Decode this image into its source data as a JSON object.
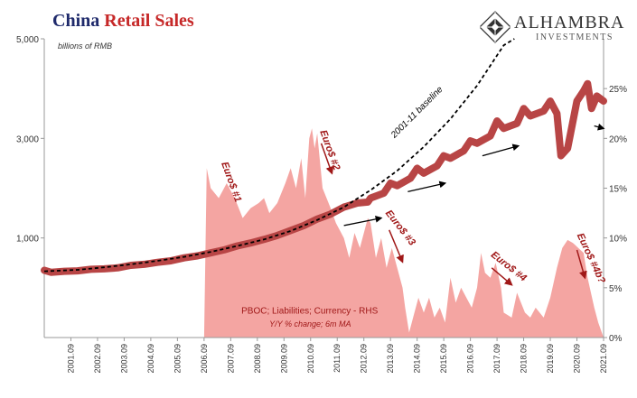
{
  "header": {
    "title_part1": "China",
    "title_part2": "Retail Sales",
    "logo_name": "ALHAMBRA",
    "logo_sub": "INVESTMENTS",
    "units": "billions of RMB"
  },
  "colors": {
    "title_blue": "#1f2a6b",
    "title_red": "#c62828",
    "retail_line": "#b84545",
    "pboc_area": "#f4a5a2",
    "annotation_red": "#a01818",
    "baseline": "#000000"
  },
  "chart_data": {
    "type": "line",
    "x_ticks": [
      "2001.09",
      "2002.09",
      "2003.09",
      "2004.09",
      "2005.09",
      "2006.09",
      "2007.09",
      "2008.09",
      "2009.09",
      "2010.09",
      "2011.09",
      "2012.09",
      "2013.09",
      "2014.09",
      "2015.09",
      "2016.09",
      "2017.09",
      "2018.09",
      "2019.09",
      "2020.09",
      "2021.09"
    ],
    "left_axis": {
      "ticks": [
        "1,000",
        "3,000",
        "5,000"
      ],
      "tick_values": [
        1000,
        3000,
        5000
      ],
      "range": [
        -1000,
        5000
      ],
      "scale": "linear"
    },
    "right_axis": {
      "ticks": [
        "0%",
        "5%",
        "10%",
        "15%",
        "20%",
        "25%"
      ],
      "tick_values": [
        0,
        5,
        10,
        15,
        20,
        25
      ],
      "range": [
        0,
        30
      ]
    },
    "x_range": [
      2000.75,
      2021.75
    ],
    "series": [
      {
        "name": "China Retail Sales",
        "axis": "left",
        "style": "thick-line",
        "points": [
          [
            2000.75,
            350
          ],
          [
            2001.0,
            310
          ],
          [
            2001.5,
            330
          ],
          [
            2002.0,
            340
          ],
          [
            2002.5,
            370
          ],
          [
            2003.0,
            380
          ],
          [
            2003.5,
            400
          ],
          [
            2004.0,
            450
          ],
          [
            2004.5,
            470
          ],
          [
            2005.0,
            510
          ],
          [
            2005.5,
            540
          ],
          [
            2006.0,
            600
          ],
          [
            2006.5,
            640
          ],
          [
            2007.0,
            700
          ],
          [
            2007.5,
            760
          ],
          [
            2008.0,
            840
          ],
          [
            2008.5,
            900
          ],
          [
            2009.0,
            970
          ],
          [
            2009.5,
            1050
          ],
          [
            2010.0,
            1150
          ],
          [
            2010.5,
            1250
          ],
          [
            2011.0,
            1380
          ],
          [
            2011.5,
            1480
          ],
          [
            2012.0,
            1620
          ],
          [
            2012.5,
            1700
          ],
          [
            2012.9,
            1720
          ],
          [
            2013.0,
            1800
          ],
          [
            2013.5,
            1900
          ],
          [
            2013.75,
            2100
          ],
          [
            2014.0,
            2050
          ],
          [
            2014.5,
            2200
          ],
          [
            2014.75,
            2400
          ],
          [
            2015.0,
            2300
          ],
          [
            2015.5,
            2450
          ],
          [
            2015.75,
            2650
          ],
          [
            2016.0,
            2600
          ],
          [
            2016.5,
            2750
          ],
          [
            2016.75,
            2950
          ],
          [
            2017.0,
            2900
          ],
          [
            2017.5,
            3050
          ],
          [
            2017.75,
            3350
          ],
          [
            2018.0,
            3200
          ],
          [
            2018.5,
            3300
          ],
          [
            2018.75,
            3600
          ],
          [
            2019.0,
            3450
          ],
          [
            2019.5,
            3550
          ],
          [
            2019.75,
            3750
          ],
          [
            2020.0,
            3500
          ],
          [
            2020.15,
            2650
          ],
          [
            2020.4,
            2800
          ],
          [
            2020.75,
            3750
          ],
          [
            2021.0,
            3950
          ],
          [
            2021.15,
            4100
          ],
          [
            2021.3,
            3600
          ],
          [
            2021.5,
            3850
          ],
          [
            2021.75,
            3750
          ]
        ]
      },
      {
        "name": "PBOC; Liabilities; Currency - RHS",
        "axis": "right",
        "style": "area",
        "points": [
          [
            2006.75,
            0
          ],
          [
            2006.85,
            17
          ],
          [
            2007.0,
            15
          ],
          [
            2007.3,
            14
          ],
          [
            2007.6,
            15.5
          ],
          [
            2007.9,
            14
          ],
          [
            2008.2,
            12
          ],
          [
            2008.5,
            13
          ],
          [
            2008.8,
            13.5
          ],
          [
            2009.0,
            14
          ],
          [
            2009.2,
            12.5
          ],
          [
            2009.5,
            13.5
          ],
          [
            2009.8,
            15.5
          ],
          [
            2010.0,
            17
          ],
          [
            2010.2,
            15
          ],
          [
            2010.4,
            18
          ],
          [
            2010.55,
            14
          ],
          [
            2010.7,
            20
          ],
          [
            2010.8,
            21
          ],
          [
            2010.9,
            19
          ],
          [
            2011.0,
            20.5
          ],
          [
            2011.2,
            15
          ],
          [
            2011.5,
            13
          ],
          [
            2011.7,
            11.5
          ],
          [
            2012.0,
            10
          ],
          [
            2012.2,
            8
          ],
          [
            2012.4,
            10.5
          ],
          [
            2012.6,
            9
          ],
          [
            2012.9,
            12
          ],
          [
            2013.0,
            11.5
          ],
          [
            2013.2,
            8
          ],
          [
            2013.4,
            10
          ],
          [
            2013.6,
            7
          ],
          [
            2013.8,
            9
          ],
          [
            2014.0,
            7
          ],
          [
            2014.2,
            5
          ],
          [
            2014.3,
            3
          ],
          [
            2014.45,
            0.5
          ],
          [
            2014.6,
            2
          ],
          [
            2014.8,
            4
          ],
          [
            2015.0,
            2.5
          ],
          [
            2015.2,
            4
          ],
          [
            2015.4,
            2
          ],
          [
            2015.6,
            3
          ],
          [
            2015.8,
            1.5
          ],
          [
            2016.0,
            6
          ],
          [
            2016.2,
            3.5
          ],
          [
            2016.4,
            5
          ],
          [
            2016.6,
            4
          ],
          [
            2016.8,
            3
          ],
          [
            2017.0,
            5
          ],
          [
            2017.15,
            8.5
          ],
          [
            2017.3,
            6.5
          ],
          [
            2017.5,
            6
          ],
          [
            2017.7,
            7.5
          ],
          [
            2017.9,
            5
          ],
          [
            2018.0,
            2.5
          ],
          [
            2018.3,
            2
          ],
          [
            2018.5,
            4.5
          ],
          [
            2018.8,
            2.5
          ],
          [
            2019.0,
            2
          ],
          [
            2019.2,
            3
          ],
          [
            2019.5,
            2
          ],
          [
            2019.75,
            4
          ],
          [
            2020.0,
            7
          ],
          [
            2020.2,
            9
          ],
          [
            2020.4,
            9.8
          ],
          [
            2020.6,
            9.5
          ],
          [
            2020.8,
            9
          ],
          [
            2021.0,
            8.5
          ],
          [
            2021.15,
            6
          ],
          [
            2021.4,
            3
          ],
          [
            2021.55,
            1.5
          ],
          [
            2021.75,
            0
          ]
        ]
      },
      {
        "name": "2001-11 baseline",
        "axis": "left",
        "style": "dashed",
        "points": [
          [
            2000.75,
            330
          ],
          [
            2002.0,
            360
          ],
          [
            2003.0,
            410
          ],
          [
            2004.0,
            470
          ],
          [
            2005.0,
            540
          ],
          [
            2006.0,
            620
          ],
          [
            2007.0,
            720
          ],
          [
            2008.0,
            840
          ],
          [
            2009.0,
            970
          ],
          [
            2010.0,
            1140
          ],
          [
            2011.0,
            1360
          ],
          [
            2012.0,
            1620
          ],
          [
            2013.0,
            1960
          ],
          [
            2014.0,
            2350
          ],
          [
            2015.0,
            2830
          ],
          [
            2016.0,
            3390
          ],
          [
            2017.0,
            4060
          ],
          [
            2018.0,
            4870
          ],
          [
            2018.4,
            5000
          ]
        ]
      }
    ],
    "annotations": [
      {
        "text": "Euro$ #1",
        "x": 2007.4,
        "y_right": 17.5,
        "rotate": 70
      },
      {
        "text": "Euro$ #2",
        "x": 2011.1,
        "y_right": 20.7,
        "rotate": 70
      },
      {
        "text": "Euro$ #3",
        "x": 2013.55,
        "y_right": 12.5,
        "rotate": 52
      },
      {
        "text": "Euro$ #4",
        "x": 2017.5,
        "y_right": 8.2,
        "rotate": 38
      },
      {
        "text": "Euro$ #4b?",
        "x": 2020.75,
        "y_right": 10.3,
        "rotate": 65
      },
      {
        "text": "2001-11 baseline",
        "x": 2013.9,
        "y_left": 3000,
        "rotate": -45
      },
      {
        "text": "PBOC; Liabilities; Currency - RHS",
        "x": 2008.15,
        "y_right": 2.4,
        "rotate": 0
      },
      {
        "text": "Y/Y % change; 6m MA",
        "x": 2009.2,
        "y_right": 1.1,
        "rotate": 0
      }
    ],
    "arrows_red": [
      {
        "from": [
          2011.15,
          19.5
        ],
        "to": [
          2011.55,
          16.5
        ]
      },
      {
        "from": [
          2013.7,
          10.8
        ],
        "to": [
          2014.2,
          7.6
        ]
      },
      {
        "from": [
          2017.55,
          7.0
        ],
        "to": [
          2018.3,
          5.3
        ]
      },
      {
        "from": [
          2020.75,
          8.8
        ],
        "to": [
          2021.05,
          6.0
        ]
      }
    ],
    "arrows_black_left": [
      {
        "from": [
          2012.0,
          1250
        ],
        "to": [
          2013.4,
          1400
        ]
      },
      {
        "from": [
          2014.4,
          1930
        ],
        "to": [
          2015.8,
          2100
        ]
      },
      {
        "from": [
          2017.2,
          2650
        ],
        "to": [
          2018.55,
          2850
        ]
      },
      {
        "from": [
          2021.4,
          3250
        ],
        "to": [
          2021.75,
          3200
        ]
      }
    ],
    "ylabel_left": "billions of RMB",
    "grid": false
  }
}
